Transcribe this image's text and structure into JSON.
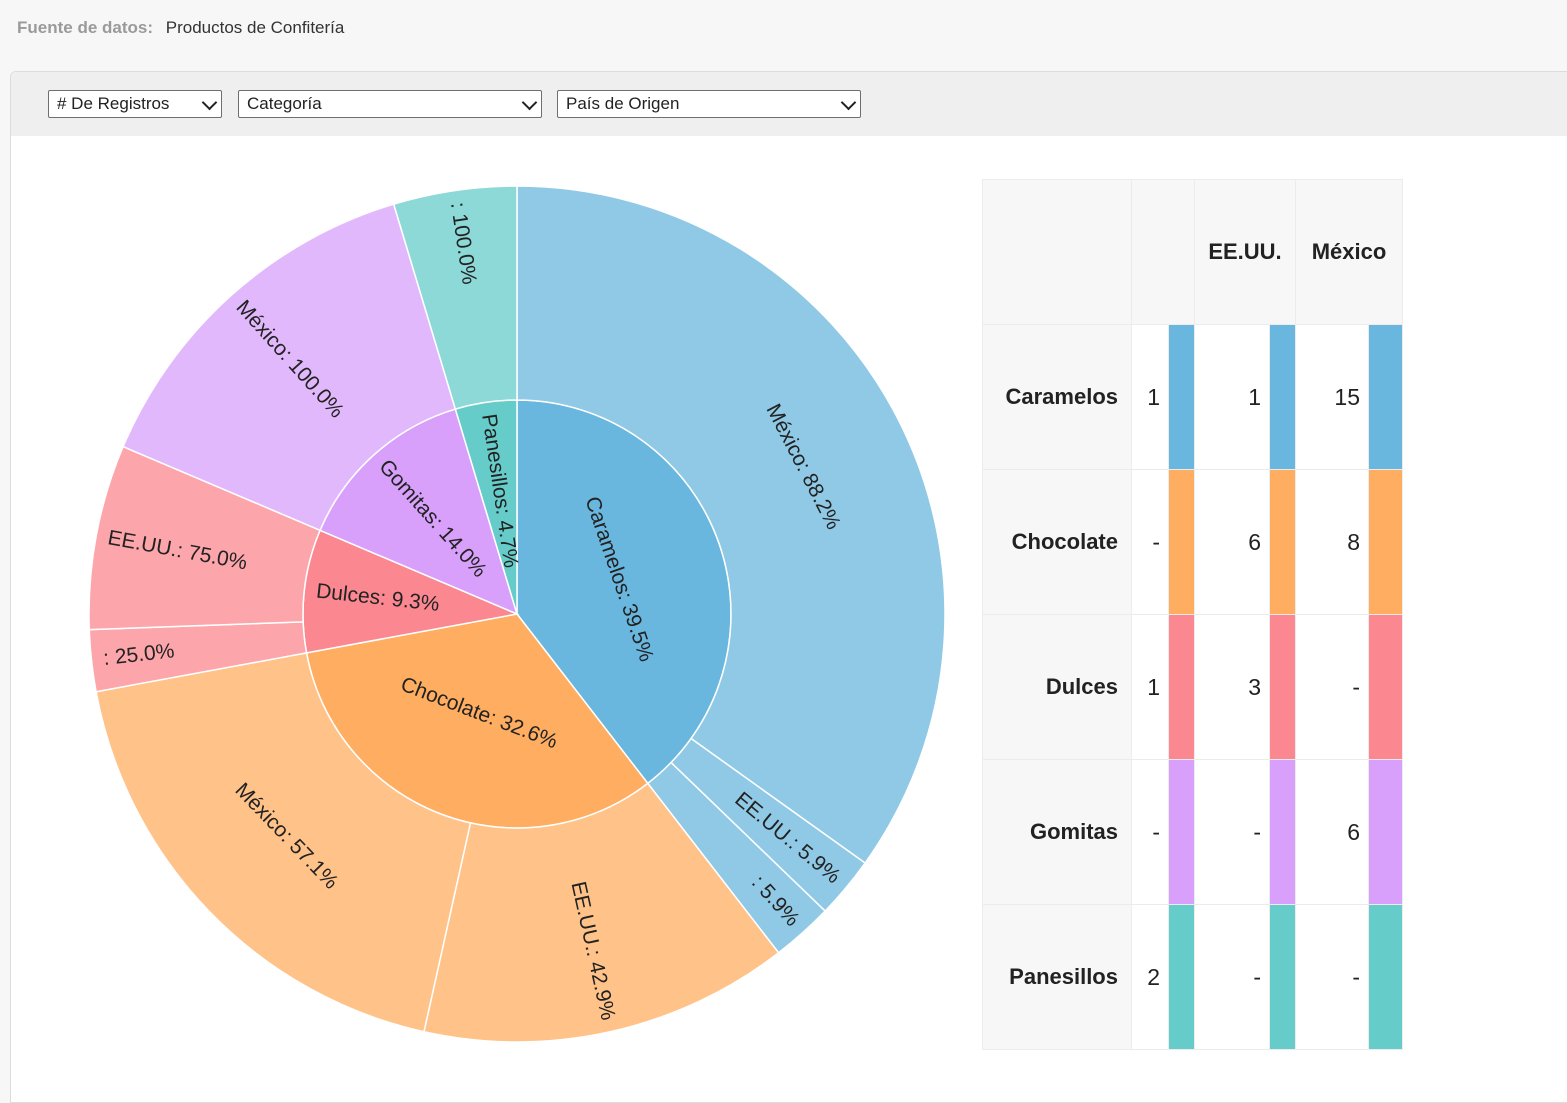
{
  "header": {
    "label": "Fuente de datos:",
    "value": "Productos de Confitería"
  },
  "toolbar": {
    "measure": "# De Registros",
    "rows": "Categoría",
    "cols": "País de Origen"
  },
  "colors": {
    "Caramelos": "#69b7de",
    "Chocolate": "#ffae61",
    "Dulces": "#fb8890",
    "Gomitas": "#d8a0fb",
    "Panesillos": "#66ccc9"
  },
  "chart_data": {
    "type": "sunburst",
    "total": 43,
    "inner": [
      {
        "name": "Caramelos",
        "value": 17,
        "label": "Caramelos: 39.5%"
      },
      {
        "name": "Chocolate",
        "value": 14,
        "label": "Chocolate: 32.6%"
      },
      {
        "name": "Dulces",
        "value": 4,
        "label": "Dulces: 9.3%"
      },
      {
        "name": "Gomitas",
        "value": 6,
        "label": "Gomitas: 14.0%"
      },
      {
        "name": "Panesillos",
        "value": 2,
        "label": "Panesillos: 4.7%"
      }
    ],
    "outer": [
      {
        "parent": "Caramelos",
        "name": "México",
        "value": 15,
        "label": "México: 88.2%"
      },
      {
        "parent": "Caramelos",
        "name": "EE.UU.",
        "value": 1,
        "label": "EE.UU.: 5.9%"
      },
      {
        "parent": "Caramelos",
        "name": "",
        "value": 1,
        "label": ": 5.9%"
      },
      {
        "parent": "Chocolate",
        "name": "EE.UU.",
        "value": 6,
        "label": "EE.UU.: 42.9%"
      },
      {
        "parent": "Chocolate",
        "name": "México",
        "value": 8,
        "label": "México: 57.1%"
      },
      {
        "parent": "Dulces",
        "name": "",
        "value": 1,
        "label": ": 25.0%"
      },
      {
        "parent": "Dulces",
        "name": "EE.UU.",
        "value": 3,
        "label": "EE.UU.: 75.0%"
      },
      {
        "parent": "Gomitas",
        "name": "México",
        "value": 6,
        "label": "México: 100.0%"
      },
      {
        "parent": "Panesillos",
        "name": "",
        "value": 2,
        "label": ": 100.0%"
      }
    ]
  },
  "table": {
    "columns": [
      "",
      "EE.UU.",
      "México"
    ],
    "rows": [
      {
        "label": "Caramelos",
        "values": [
          "1",
          "1",
          "15"
        ]
      },
      {
        "label": "Chocolate",
        "values": [
          "-",
          "6",
          "8"
        ]
      },
      {
        "label": "Dulces",
        "values": [
          "1",
          "3",
          "-"
        ]
      },
      {
        "label": "Gomitas",
        "values": [
          "-",
          "-",
          "6"
        ]
      },
      {
        "label": "Panesillos",
        "values": [
          "2",
          "-",
          "-"
        ]
      }
    ]
  }
}
